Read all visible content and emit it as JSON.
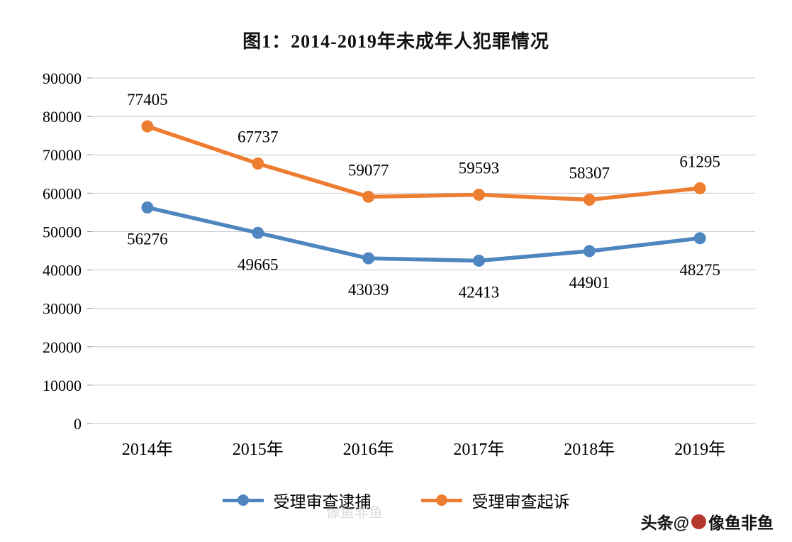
{
  "chart_data": {
    "type": "line",
    "title": "图1：2014-2019年未成年人犯罪情况",
    "categories": [
      "2014年",
      "2015年",
      "2016年",
      "2017年",
      "2018年",
      "2019年"
    ],
    "series": [
      {
        "name": "受理审查逮捕",
        "color": "#4e86c0",
        "values": [
          56276,
          49665,
          43039,
          42413,
          44901,
          48275
        ],
        "label_position": "below"
      },
      {
        "name": "受理审查起诉",
        "color": "#ed7d31",
        "values": [
          77405,
          67737,
          59077,
          59593,
          58307,
          61295
        ],
        "label_position": "above"
      }
    ],
    "ylim": [
      0,
      90000
    ],
    "ytick_step": 10000,
    "grid": true,
    "legend_position": "bottom"
  },
  "watermark": {
    "prefix": "头条@",
    "suffix": "像鱼非鱼"
  },
  "faint_watermark": "像鱼非鱼",
  "colors": {
    "grid": "#c9c9c9",
    "tick": "#8c8c8c"
  }
}
